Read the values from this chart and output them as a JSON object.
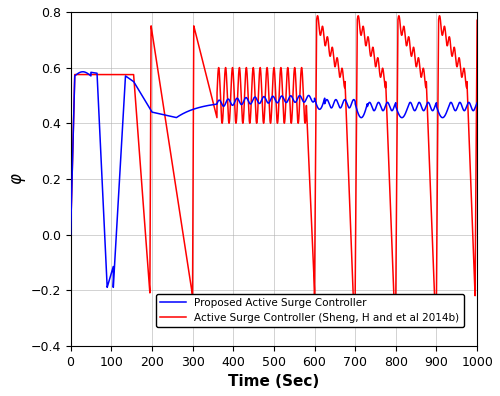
{
  "title": "",
  "xlabel": "Time (Sec)",
  "ylabel": "φ",
  "xlim": [
    0,
    1000
  ],
  "ylim": [
    -0.4,
    0.8
  ],
  "yticks": [
    -0.4,
    -0.2,
    0,
    0.2,
    0.4,
    0.6,
    0.8
  ],
  "xticks": [
    0,
    100,
    200,
    300,
    400,
    500,
    600,
    700,
    800,
    900,
    1000
  ],
  "blue_color": "#0000FF",
  "red_color": "#FF0000",
  "legend_labels": [
    "Proposed Active Surge Controller",
    "Active Surge Controller (Sheng, H and et al 2014b)"
  ],
  "background_color": "#FFFFFF",
  "grid_color": "#B0B0B0"
}
